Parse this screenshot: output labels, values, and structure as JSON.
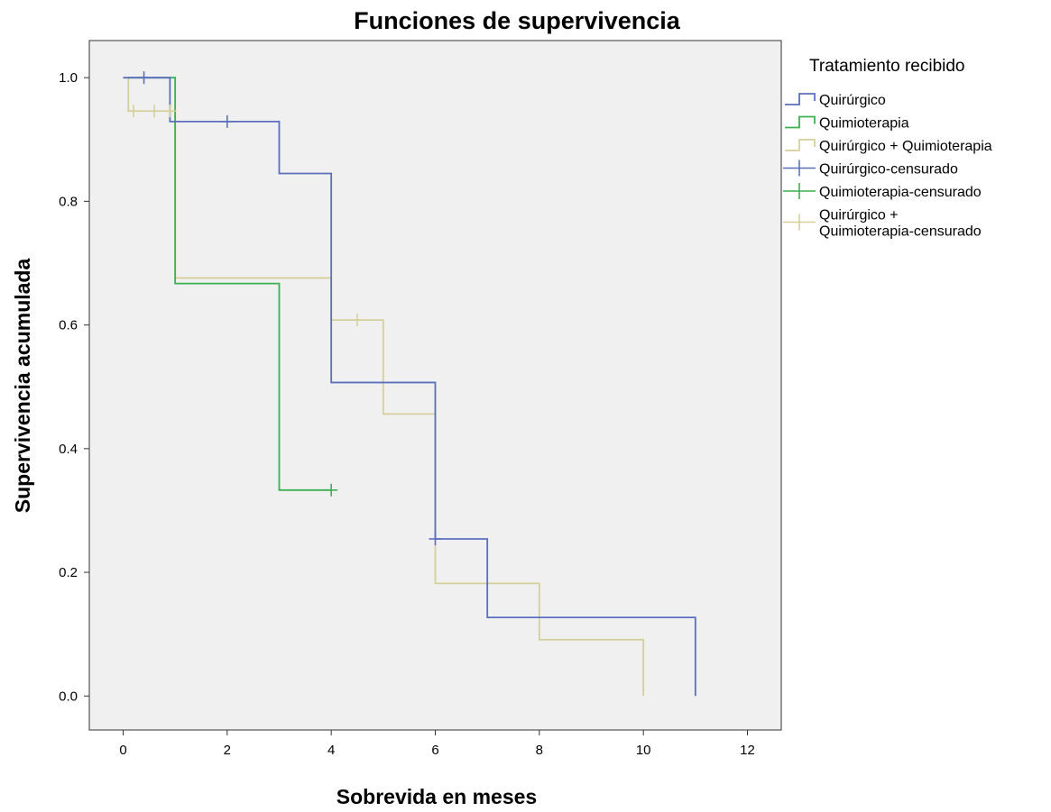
{
  "chart_data": {
    "type": "line",
    "step": "post",
    "title": "Funciones de supervivencia",
    "xlabel": "Sobrevida en meses",
    "ylabel": "Supervivencia acumulada",
    "xlim": [
      -0.65,
      12.65
    ],
    "ylim": [
      -0.055,
      1.06
    ],
    "xticks": [
      0,
      2,
      4,
      6,
      8,
      10,
      12
    ],
    "xtick_labels": [
      "0",
      "2",
      "4",
      "6",
      "8",
      "10",
      "12"
    ],
    "yticks": [
      0.0,
      0.2,
      0.4,
      0.6,
      0.8,
      1.0
    ],
    "ytick_labels": [
      "0.0",
      "0.2",
      "0.4",
      "0.6",
      "0.8",
      "1.0"
    ],
    "grid": false,
    "background": "#f0f0f0",
    "legend": {
      "title": "Tratamiento recibido",
      "placement": "right"
    },
    "series": [
      {
        "name": "Quirúrgico",
        "color": "#5b6fbf",
        "x": [
          0,
          0.9,
          3,
          4,
          6,
          7,
          11
        ],
        "y": [
          1.0,
          0.929,
          0.845,
          0.507,
          0.254,
          0.127,
          0.0
        ]
      },
      {
        "name": "Quimioterapia",
        "color": "#3cb050",
        "x": [
          0.1,
          1,
          3,
          4
        ],
        "y": [
          1.0,
          0.667,
          0.333,
          0.333
        ]
      },
      {
        "name": "Quirúrgico + Quimioterapia",
        "color": "#d7cf9b",
        "x": [
          0,
          0.1,
          1,
          4,
          5,
          6,
          8,
          10
        ],
        "y": [
          1.0,
          0.946,
          0.676,
          0.608,
          0.456,
          0.182,
          0.091,
          0.0
        ]
      }
    ],
    "censored": [
      {
        "name": "Quirúrgico-censurado",
        "color": "#5b6fbf",
        "x": [
          0.4,
          2,
          6
        ],
        "y": [
          1.0,
          0.929,
          0.254
        ]
      },
      {
        "name": "Quimioterapia-censurado",
        "color": "#3cb050",
        "x": [
          4
        ],
        "y": [
          0.333
        ]
      },
      {
        "name": "Quirúrgico + Quimioterapia-censurado",
        "label_lines": [
          "Quirúrgico +",
          "Quimioterapia-censurado"
        ],
        "color": "#d7cf9b",
        "x": [
          0.2,
          0.6,
          0.9,
          4.5
        ],
        "y": [
          0.946,
          0.946,
          0.946,
          0.608
        ]
      }
    ]
  }
}
